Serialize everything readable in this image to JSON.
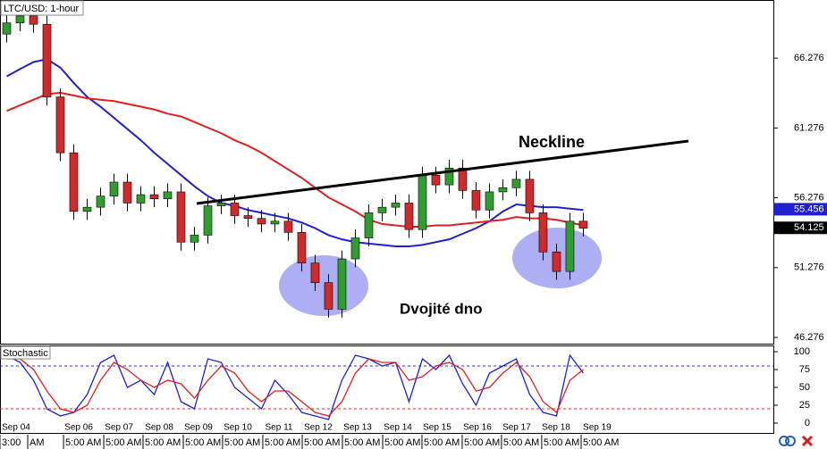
{
  "chart_data": {
    "type": "candlestick",
    "title": "LTC/USD: 1-hour",
    "ylim": [
      45.83,
      70.44
    ],
    "yticks": [
      66.276,
      61.276,
      56.276,
      51.276,
      46.276
    ],
    "xlim": [
      -0.5,
      57.17
    ],
    "up_color": "#2f9e2f",
    "down_color": "#d02a2a",
    "open": [
      68.0,
      68.8,
      69.3,
      68.7,
      63.5,
      59.5,
      55.3,
      55.6,
      56.4,
      57.4,
      55.9,
      56.5,
      56.2,
      56.7,
      53.1,
      53.6,
      55.7,
      55.9,
      55.0,
      54.8,
      54.4,
      54.6,
      53.8,
      51.6,
      50.2,
      48.3,
      51.9,
      53.4,
      55.2,
      55.6,
      55.9,
      54.0,
      57.9,
      57.2,
      58.4,
      56.8,
      55.4,
      56.7,
      57.0,
      57.6,
      55.2,
      52.4,
      51.0,
      54.6
    ],
    "high": [
      69.4,
      69.9,
      69.9,
      69.3,
      64.1,
      60.1,
      56.2,
      57.0,
      58.0,
      58.0,
      57.1,
      57.1,
      57.3,
      57.3,
      54.2,
      56.3,
      56.5,
      56.5,
      55.6,
      55.4,
      55.2,
      55.2,
      54.4,
      52.2,
      50.8,
      52.5,
      54.0,
      55.8,
      56.2,
      56.5,
      56.5,
      58.5,
      58.5,
      59.0,
      59.0,
      57.4,
      57.3,
      57.6,
      58.2,
      58.2,
      55.8,
      53.0,
      55.2,
      55.2
    ],
    "low": [
      67.4,
      68.2,
      68.1,
      62.9,
      58.9,
      54.7,
      54.7,
      55.0,
      55.8,
      55.3,
      55.3,
      55.6,
      55.6,
      52.5,
      52.5,
      53.0,
      55.1,
      54.4,
      54.2,
      53.8,
      53.8,
      53.2,
      51.0,
      49.6,
      47.7,
      47.7,
      51.3,
      52.8,
      54.6,
      55.0,
      53.4,
      53.4,
      56.6,
      56.6,
      56.2,
      54.8,
      54.8,
      56.1,
      56.4,
      54.6,
      51.8,
      50.4,
      50.4,
      53.5
    ],
    "close": [
      68.8,
      69.3,
      68.7,
      63.5,
      59.5,
      55.3,
      55.6,
      56.4,
      57.4,
      55.9,
      56.5,
      56.2,
      56.7,
      53.1,
      53.6,
      55.7,
      55.9,
      55.0,
      54.8,
      54.4,
      54.6,
      53.8,
      51.6,
      50.2,
      48.3,
      51.9,
      53.4,
      55.2,
      55.6,
      55.9,
      54.0,
      57.9,
      57.2,
      58.4,
      56.8,
      55.4,
      56.7,
      57.0,
      57.6,
      55.2,
      52.4,
      51.0,
      54.6,
      54.1
    ],
    "series": [
      {
        "color": "#2020d0",
        "values": [
          64.97,
          65.5,
          66.0,
          66.2,
          65.6,
          64.5,
          63.5,
          62.8,
          62.0,
          61.2,
          60.4,
          59.5,
          58.7,
          57.9,
          57.1,
          56.4,
          55.9,
          55.7,
          55.4,
          55.2,
          55.0,
          54.8,
          54.5,
          54.1,
          53.6,
          53.3,
          53.1,
          53.0,
          52.9,
          52.8,
          52.8,
          52.9,
          53.1,
          53.3,
          53.7,
          54.1,
          54.6,
          55.3,
          55.8,
          55.7,
          55.6,
          55.6,
          55.5,
          55.4
        ]
      },
      {
        "color": "#e02020",
        "values": [
          62.5,
          62.9,
          63.3,
          63.7,
          63.8,
          63.6,
          63.4,
          63.3,
          63.2,
          63.0,
          62.8,
          62.6,
          62.3,
          62.1,
          61.7,
          61.3,
          60.9,
          60.4,
          60.0,
          59.5,
          58.9,
          58.3,
          57.7,
          57.0,
          56.3,
          55.8,
          55.3,
          54.7,
          54.4,
          54.3,
          54.2,
          54.2,
          54.3,
          54.3,
          54.4,
          54.5,
          54.6,
          54.7,
          54.9,
          54.8,
          54.8,
          54.7,
          54.5,
          54.3
        ]
      }
    ],
    "price_tags": [
      {
        "value": 55.456,
        "color": "#2020d0"
      },
      {
        "value": 54.125,
        "color": "#000000"
      }
    ],
    "annotations": [
      "Neckline",
      "Dvojité dno"
    ],
    "xticks": [
      {
        "value": 0.7,
        "label": "Sep 04"
      },
      {
        "value": 5.37,
        "label": "Sep 06"
      },
      {
        "value": 8.37,
        "label": "Sep 07"
      },
      {
        "value": 11.37,
        "label": "Sep 08"
      },
      {
        "value": 14.3,
        "label": "Sep 09"
      },
      {
        "value": 17.23,
        "label": "Sep 10"
      },
      {
        "value": 20.3,
        "label": "Sep 11"
      },
      {
        "value": 23.23,
        "label": "Sep 12"
      },
      {
        "value": 26.17,
        "label": "Sep 13"
      },
      {
        "value": 29.17,
        "label": "Sep 14"
      },
      {
        "value": 32.1,
        "label": "Sep 15"
      },
      {
        "value": 35.1,
        "label": "Sep 16"
      },
      {
        "value": 38.03,
        "label": "Sep 17"
      },
      {
        "value": 40.97,
        "label": "Sep 18"
      },
      {
        "value": 44.03,
        "label": "Sep 19"
      }
    ],
    "time_ticks": [
      {
        "value": -0.37,
        "label": "3:00"
      },
      {
        "value": 1.7,
        "label": "AM"
      },
      {
        "value": 4.37,
        "label": "5:00 AM"
      },
      {
        "value": 7.37,
        "label": "5:00 AM"
      },
      {
        "value": 10.3,
        "label": "5:00 AM"
      },
      {
        "value": 13.3,
        "label": "5:00 AM"
      },
      {
        "value": 16.23,
        "label": "5:00 AM"
      },
      {
        "value": 19.23,
        "label": "5:00 AM"
      },
      {
        "value": 22.17,
        "label": "5:00 AM"
      },
      {
        "value": 25.17,
        "label": "5:00 AM"
      },
      {
        "value": 28.17,
        "label": "5:00 AM"
      },
      {
        "value": 31.1,
        "label": "5:00 AM"
      },
      {
        "value": 34.1,
        "label": "5:00 AM"
      },
      {
        "value": 37.03,
        "label": "5:00 AM"
      },
      {
        "value": 40.03,
        "label": "5:00 AM"
      },
      {
        "value": 42.97,
        "label": "5:00 AM"
      }
    ],
    "stochastic": {
      "title": "Stochastic",
      "ylim": [
        -13.75,
        107.5
      ],
      "yticks": [
        100,
        75,
        50,
        25,
        0
      ],
      "levels": [
        {
          "value": 80,
          "color": "#3030d0"
        },
        {
          "value": 20,
          "color": "#d03030"
        }
      ],
      "series": [
        {
          "color": "#2020d0",
          "values": [
            95,
            85,
            60,
            20,
            10,
            15,
            40,
            85,
            95,
            50,
            60,
            40,
            85,
            30,
            20,
            90,
            85,
            50,
            35,
            20,
            60,
            40,
            15,
            10,
            5,
            60,
            95,
            90,
            80,
            85,
            30,
            90,
            75,
            95,
            55,
            25,
            70,
            80,
            90,
            40,
            15,
            10,
            95,
            70
          ]
        },
        {
          "color": "#e02020",
          "values": [
            90,
            90,
            75,
            45,
            20,
            15,
            25,
            60,
            85,
            75,
            60,
            50,
            60,
            55,
            35,
            60,
            80,
            70,
            45,
            30,
            45,
            45,
            30,
            15,
            10,
            30,
            70,
            90,
            85,
            85,
            60,
            65,
            80,
            85,
            75,
            45,
            50,
            70,
            85,
            65,
            30,
            15,
            60,
            75
          ]
        }
      ]
    }
  }
}
